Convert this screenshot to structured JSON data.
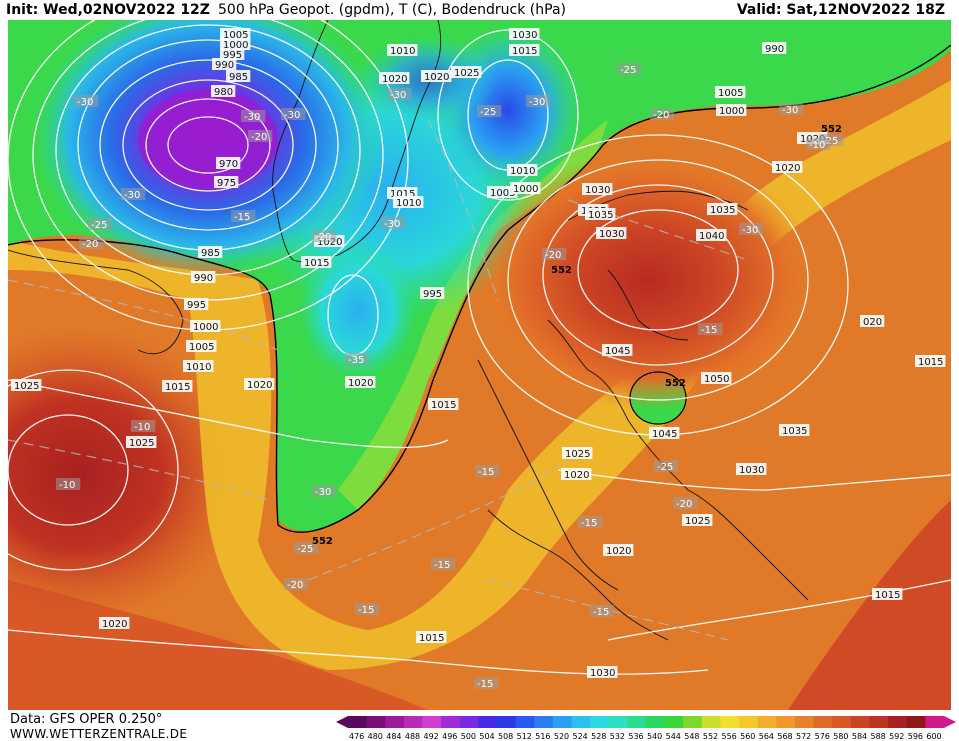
{
  "header": {
    "init": "Init: Wed,02NOV2022 12Z",
    "title": "500 hPa Geopot. (gpdm), T (C), Bodendruck (hPa)",
    "valid": "Valid: Sat,12NOV2022 18Z"
  },
  "footer": {
    "source": "Data: GFS OPER 0.250°",
    "website": "WWW.WETTERZENTRALE.DE"
  },
  "colorbar": {
    "ticks": [
      "476",
      "480",
      "484",
      "488",
      "492",
      "496",
      "500",
      "504",
      "508",
      "512",
      "516",
      "520",
      "524",
      "528",
      "532",
      "536",
      "540",
      "544",
      "548",
      "552",
      "556",
      "560",
      "564",
      "568",
      "572",
      "576",
      "580",
      "584",
      "588",
      "592",
      "596",
      "600"
    ],
    "colors": [
      "#5a0a5a",
      "#7a0f7a",
      "#9b1b9b",
      "#b82ab8",
      "#d43dd4",
      "#a12bd8",
      "#7a2ae0",
      "#4b2ae6",
      "#2a3ae8",
      "#2a5aeb",
      "#2a7ef0",
      "#2aa0f2",
      "#2ac0f0",
      "#2ad8e0",
      "#2ae0c0",
      "#2adc90",
      "#2ad860",
      "#38d83a",
      "#7cd82a",
      "#c8e02a",
      "#f0e02a",
      "#f5c82a",
      "#f5ae2a",
      "#f0962a",
      "#e8802a",
      "#e06a28",
      "#d85826",
      "#cc4424",
      "#c03222",
      "#a82020",
      "#901818",
      "#d01a8a"
    ]
  },
  "map": {
    "pressure_labels": [
      {
        "text": "1005"
      },
      {
        "text": "1000"
      },
      {
        "text": "995"
      },
      {
        "text": "990"
      },
      {
        "text": "985"
      },
      {
        "text": "980"
      },
      {
        "text": "970"
      },
      {
        "text": "975"
      },
      {
        "text": "985"
      },
      {
        "text": "990"
      },
      {
        "text": "995"
      },
      {
        "text": "1000"
      },
      {
        "text": "1005"
      },
      {
        "text": "1010"
      },
      {
        "text": "1015"
      },
      {
        "text": "1020"
      },
      {
        "text": "1025"
      },
      {
        "text": "1020"
      },
      {
        "text": "1015"
      },
      {
        "text": "1020"
      },
      {
        "text": "1010"
      },
      {
        "text": "1020"
      },
      {
        "text": "1015"
      },
      {
        "text": "1010"
      },
      {
        "text": "1020"
      },
      {
        "text": "1025"
      },
      {
        "text": "1030"
      },
      {
        "text": "1015"
      },
      {
        "text": "1010"
      },
      {
        "text": "1005"
      },
      {
        "text": "1000"
      },
      {
        "text": "995"
      },
      {
        "text": "990"
      },
      {
        "text": "1005"
      },
      {
        "text": "1000"
      },
      {
        "text": "1020"
      },
      {
        "text": "1020"
      },
      {
        "text": "1025"
      },
      {
        "text": "1030"
      },
      {
        "text": "1035"
      },
      {
        "text": "1030"
      },
      {
        "text": "1035"
      },
      {
        "text": "1040"
      },
      {
        "text": "1045"
      },
      {
        "text": "1050"
      },
      {
        "text": "1045"
      },
      {
        "text": "1035"
      },
      {
        "text": "1030"
      },
      {
        "text": "1025"
      },
      {
        "text": "1020"
      },
      {
        "text": "1025"
      },
      {
        "text": "1020"
      },
      {
        "text": "1015"
      },
      {
        "text": "1015"
      },
      {
        "text": "1030"
      },
      {
        "text": "1025"
      },
      {
        "text": "1020"
      },
      {
        "text": "1015"
      },
      {
        "text": "1015"
      },
      {
        "text": "020"
      }
    ],
    "temperature_labels": [
      {
        "text": "-30"
      },
      {
        "text": "-30"
      },
      {
        "text": "-25"
      },
      {
        "text": "-20"
      },
      {
        "text": "-15"
      },
      {
        "text": "-30"
      },
      {
        "text": "-30"
      },
      {
        "text": "-20"
      },
      {
        "text": "-25"
      },
      {
        "text": "-30"
      },
      {
        "text": "-30"
      },
      {
        "text": "-25"
      },
      {
        "text": "-30"
      },
      {
        "text": "-20"
      },
      {
        "text": "-30"
      },
      {
        "text": "-25"
      },
      {
        "text": "-20"
      },
      {
        "text": "-20"
      },
      {
        "text": "-30"
      },
      {
        "text": "-35"
      },
      {
        "text": "-30"
      },
      {
        "text": "-25"
      },
      {
        "text": "-20"
      },
      {
        "text": "-15"
      },
      {
        "text": "-10"
      },
      {
        "text": "-10"
      },
      {
        "text": "-15"
      },
      {
        "text": "-15"
      },
      {
        "text": "-15"
      },
      {
        "text": "-20"
      },
      {
        "text": "-25"
      },
      {
        "text": "-15"
      },
      {
        "text": "-15"
      },
      {
        "text": "-15"
      },
      {
        "text": "-10"
      }
    ],
    "geopotential_labels": [
      {
        "text": "552"
      },
      {
        "text": "552"
      },
      {
        "text": "552"
      },
      {
        "text": "552"
      }
    ]
  }
}
